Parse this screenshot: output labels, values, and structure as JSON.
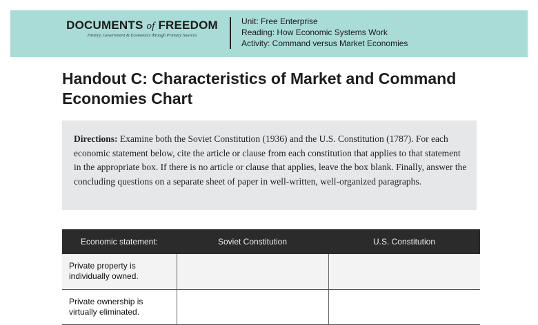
{
  "header": {
    "logo": {
      "main_left": "DOCUMENTS",
      "of": "of",
      "main_right": "FREEDOM",
      "tagline": "History, Government & Economics through Primary Sources"
    },
    "unit": "Unit: Free Enterprise",
    "reading": "Reading: How Economic Systems Work",
    "activity": "Activity: Command versus Market Economies",
    "band_color": "#a9dcd6"
  },
  "title": "Handout C: Characteristics of Market and Command Economies Chart",
  "directions": {
    "label": "Directions:",
    "text": " Examine both the Soviet Constitution (1936) and the U.S. Constitution (1787). For each economic statement below, cite the article or clause from each constitution that applies to that statement in the appropriate box. If there is no article or clause that applies, leave the box blank. Finally, answer the concluding questions on a separate sheet of paper in well-written, well-organized paragraphs."
  },
  "table": {
    "headers": [
      "Economic statement:",
      "Soviet Constitution",
      "U.S. Constitution"
    ],
    "rows": [
      {
        "statement": "Private property is individually owned.",
        "soviet": "",
        "us": ""
      },
      {
        "statement": "Private ownership is virtually eliminated.",
        "soviet": "",
        "us": ""
      }
    ]
  }
}
